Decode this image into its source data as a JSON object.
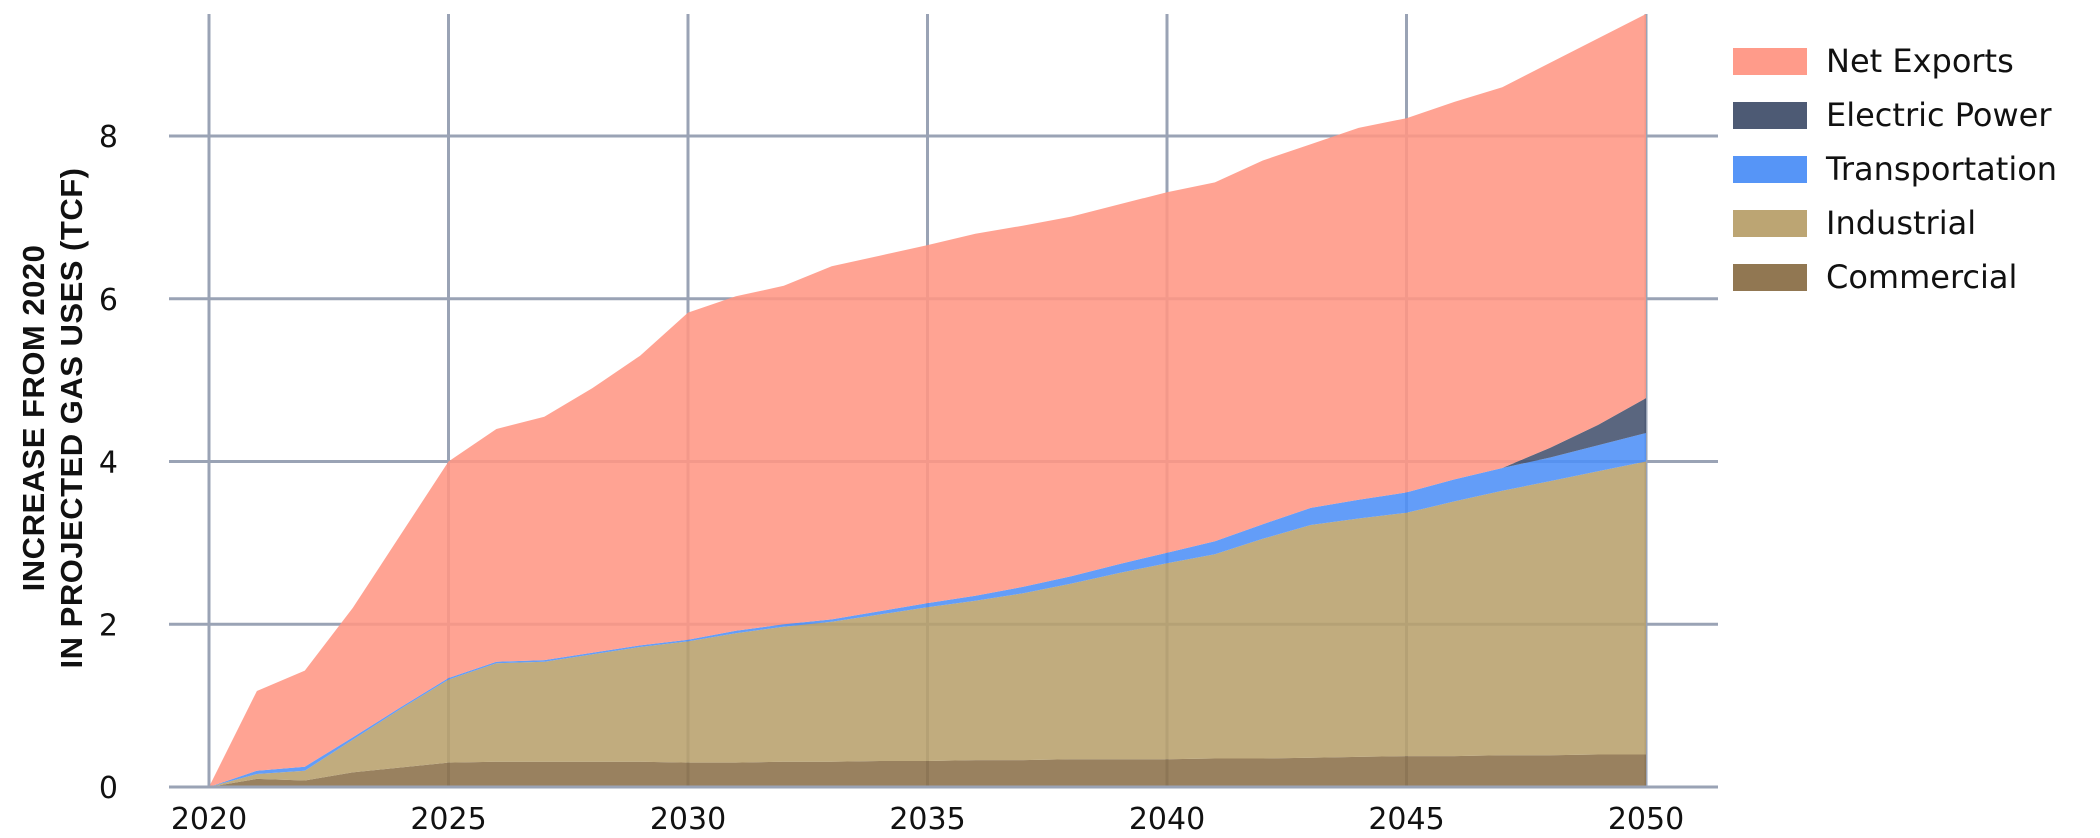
{
  "chart_data": {
    "type": "area",
    "stacked": true,
    "title": "",
    "xlabel": "",
    "ylabel_lines": [
      "INCREASE FROM 2020",
      "IN PROJECTED GAS USES (TCF)"
    ],
    "xlim": [
      2020,
      2050
    ],
    "ylim": [
      0,
      9.5
    ],
    "x_ticks": [
      2020,
      2025,
      2030,
      2035,
      2040,
      2045,
      2050
    ],
    "y_ticks": [
      0,
      2,
      4,
      6,
      8
    ],
    "grid": true,
    "legend_position": "top-right",
    "x": [
      2020,
      2021,
      2022,
      2023,
      2024,
      2025,
      2026,
      2027,
      2028,
      2029,
      2030,
      2031,
      2032,
      2033,
      2034,
      2035,
      2036,
      2037,
      2038,
      2039,
      2040,
      2041,
      2042,
      2043,
      2044,
      2045,
      2046,
      2047,
      2048,
      2049,
      2050
    ],
    "series": [
      {
        "name": "Commercial",
        "color": "#8b7049",
        "values": [
          0,
          0.1,
          0.08,
          0.18,
          0.24,
          0.3,
          0.31,
          0.31,
          0.31,
          0.31,
          0.3,
          0.3,
          0.31,
          0.31,
          0.32,
          0.32,
          0.33,
          0.33,
          0.34,
          0.34,
          0.34,
          0.35,
          0.35,
          0.36,
          0.37,
          0.38,
          0.38,
          0.39,
          0.39,
          0.4,
          0.4
        ]
      },
      {
        "name": "Industrial",
        "color": "#b8a06c",
        "values": [
          0,
          0.06,
          0.12,
          0.4,
          0.72,
          1.02,
          1.21,
          1.23,
          1.32,
          1.41,
          1.49,
          1.59,
          1.66,
          1.72,
          1.8,
          1.89,
          1.96,
          2.05,
          2.16,
          2.29,
          2.41,
          2.51,
          2.7,
          2.86,
          2.93,
          2.99,
          3.13,
          3.25,
          3.37,
          3.48,
          3.6
        ]
      },
      {
        "name": "Transportation",
        "color": "#4d8ff7",
        "values": [
          0,
          0.04,
          0.05,
          0.03,
          0.02,
          0.02,
          0.02,
          0.02,
          0.02,
          0.02,
          0.02,
          0.03,
          0.03,
          0.03,
          0.04,
          0.05,
          0.06,
          0.08,
          0.09,
          0.11,
          0.13,
          0.16,
          0.18,
          0.21,
          0.23,
          0.25,
          0.27,
          0.28,
          0.29,
          0.32,
          0.35
        ]
      },
      {
        "name": "Electric Power",
        "color": "#43516d",
        "values": [
          0,
          0,
          0,
          0,
          0,
          0,
          0,
          0,
          0,
          0,
          0,
          0,
          0,
          0,
          0,
          0,
          0,
          0,
          0,
          0,
          0,
          0,
          0,
          0,
          0,
          0,
          0,
          0,
          0.12,
          0.25,
          0.43
        ]
      },
      {
        "name": "Net Exports",
        "color": "#ff9684",
        "values": [
          0,
          0.98,
          1.18,
          1.59,
          2.12,
          2.66,
          2.86,
          2.99,
          3.25,
          3.56,
          4.02,
          4.11,
          4.16,
          4.34,
          4.37,
          4.4,
          4.45,
          4.44,
          4.42,
          4.42,
          4.43,
          4.41,
          4.47,
          4.47,
          4.57,
          4.6,
          4.64,
          4.68,
          4.73,
          4.75,
          4.72
        ]
      }
    ],
    "legend_order": [
      "Net Exports",
      "Electric Power",
      "Transportation",
      "Industrial",
      "Commercial"
    ]
  }
}
